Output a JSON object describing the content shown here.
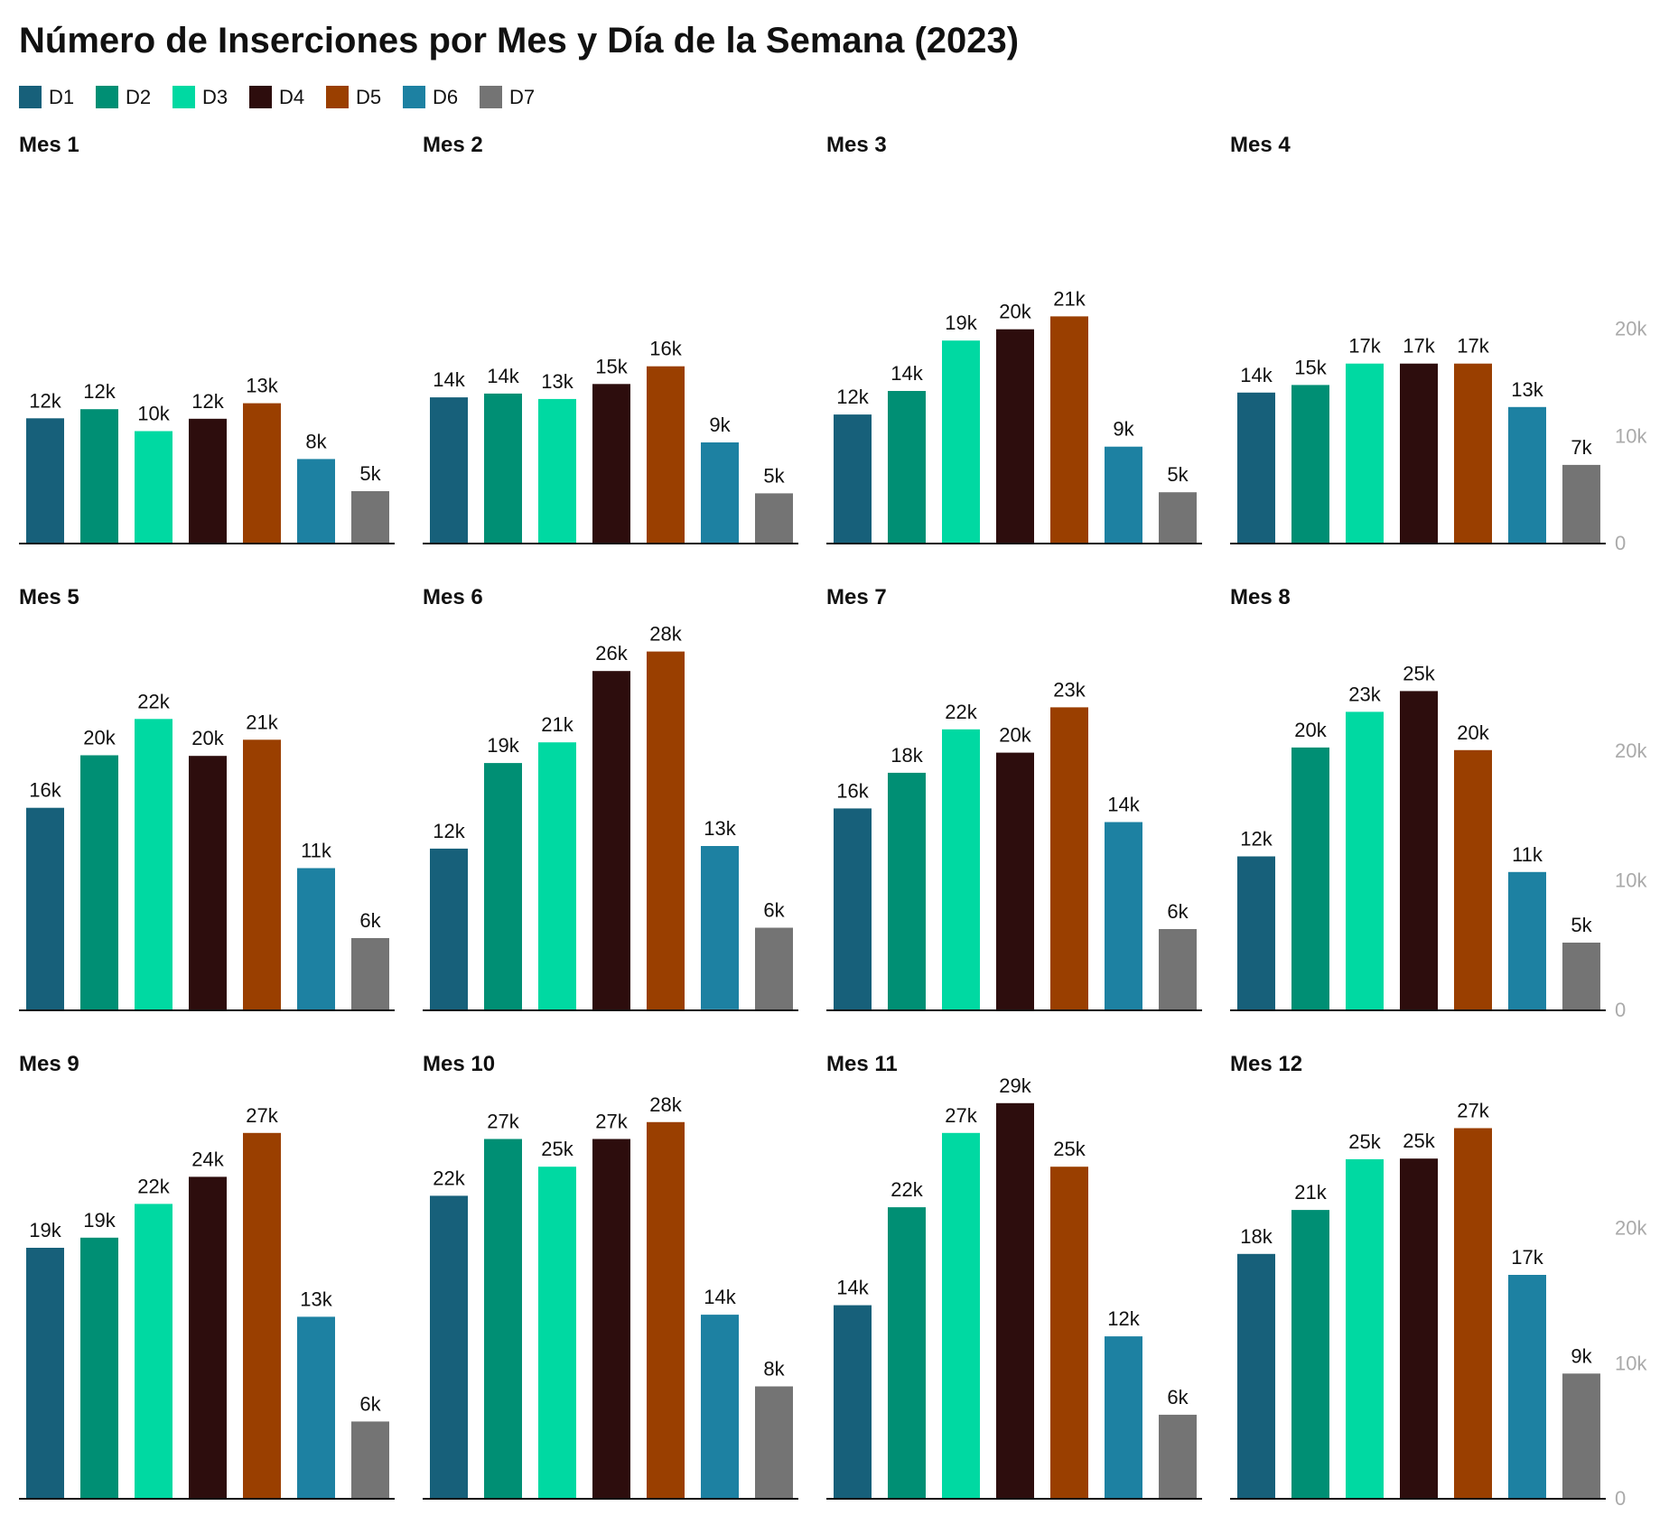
{
  "chart_data": {
    "type": "bar",
    "title": "Número de Inserciones por Mes y Día de la Semana (2023)",
    "categories": [
      "D1",
      "D2",
      "D3",
      "D4",
      "D5",
      "D6",
      "D7"
    ],
    "colors": [
      "#17607a",
      "#008f74",
      "#00d9a2",
      "#2d0d0d",
      "#9a3f00",
      "#1d81a2",
      "#747474"
    ],
    "legend": {
      "placement": "top-left"
    },
    "grid": false,
    "panels": [
      {
        "label": "Mes 1",
        "values": [
          11600,
          12450,
          10400,
          11550,
          13000,
          7800,
          4800
        ]
      },
      {
        "label": "Mes 2",
        "values": [
          13550,
          13900,
          13400,
          14800,
          16450,
          9350,
          4600
        ]
      },
      {
        "label": "Mes 3",
        "values": [
          11950,
          14150,
          18850,
          19900,
          21100,
          8950,
          4700
        ]
      },
      {
        "label": "Mes 4",
        "values": [
          14000,
          14700,
          16700,
          16700,
          16700,
          12650,
          7250
        ]
      },
      {
        "label": "Mes 5",
        "values": [
          15550,
          19600,
          22400,
          19550,
          20800,
          10900,
          5500
        ]
      },
      {
        "label": "Mes 6",
        "values": [
          12400,
          19000,
          20600,
          26100,
          27600,
          12600,
          6300
        ]
      },
      {
        "label": "Mes 7",
        "values": [
          15500,
          18250,
          21600,
          19800,
          23300,
          14450,
          6200
        ]
      },
      {
        "label": "Mes 8",
        "values": [
          11800,
          20200,
          22950,
          24550,
          20000,
          10600,
          5150
        ]
      },
      {
        "label": "Mes 9",
        "values": [
          18500,
          19250,
          21750,
          23750,
          27000,
          13400,
          5650
        ]
      },
      {
        "label": "Mes 10",
        "values": [
          22350,
          26550,
          24500,
          26550,
          27800,
          13550,
          8250
        ]
      },
      {
        "label": "Mes 11",
        "values": [
          14250,
          21500,
          27000,
          29200,
          24500,
          11950,
          6150
        ]
      },
      {
        "label": "Mes 12",
        "values": [
          18050,
          21300,
          25050,
          25100,
          27350,
          16500,
          9200
        ]
      }
    ],
    "row_ylim": [
      [
        0,
        28000
      ],
      [
        0,
        36000
      ],
      [
        0,
        36000
      ]
    ],
    "y_ticks": [
      {
        "value": 0,
        "label": "0"
      },
      {
        "value": 10000,
        "label": "10k"
      },
      {
        "value": 20000,
        "label": "20k"
      }
    ]
  }
}
